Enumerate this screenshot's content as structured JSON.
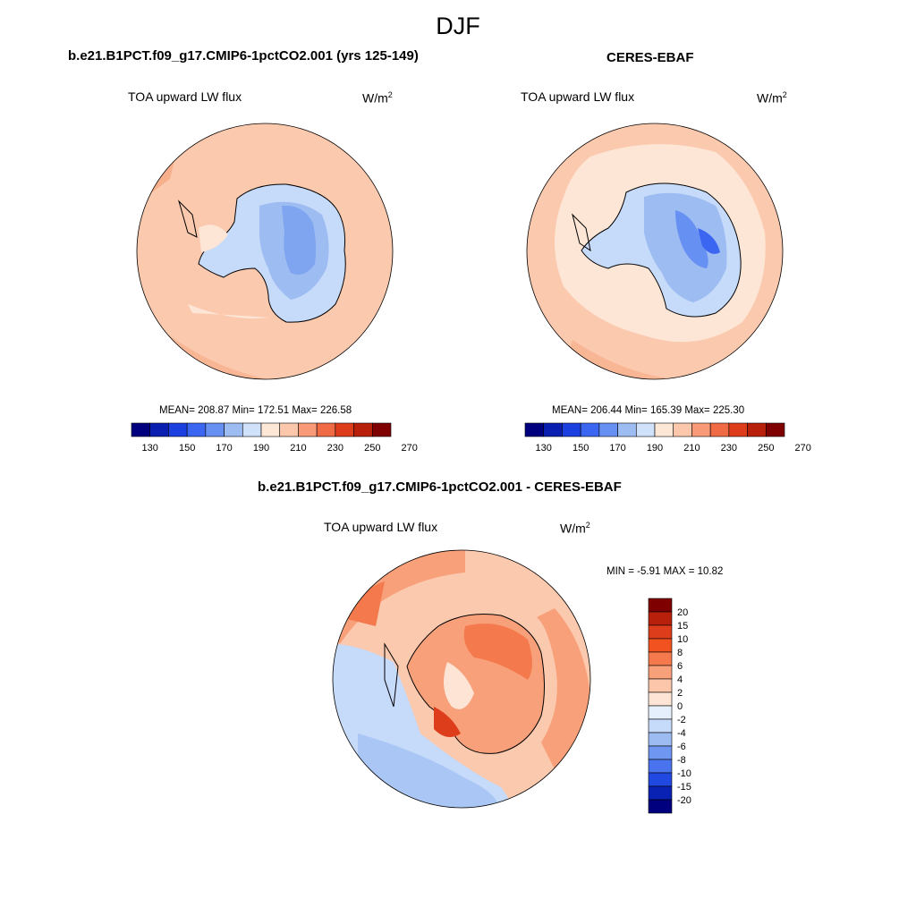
{
  "figure": {
    "title": "DJF"
  },
  "panels": [
    {
      "title": "b.e21.B1PCT.f09_g17.CMIP6-1pctCO2.001 (yrs 125-149)",
      "variable": "TOA upward LW flux",
      "units_base": "W/m",
      "units_sup": "2",
      "stats": "MEAN= 208.87  Min= 172.51  Max= 226.58"
    },
    {
      "title": "CERES-EBAF",
      "variable": "TOA upward LW flux",
      "units_base": "W/m",
      "units_sup": "2",
      "stats": "MEAN= 206.44  Min= 165.39  Max= 225.30"
    },
    {
      "title": "b.e21.B1PCT.f09_g17.CMIP6-1pctCO2.001 - CERES-EBAF",
      "variable": "TOA upward LW flux",
      "units_base": "W/m",
      "units_sup": "2",
      "stats": "MIN =  -5.91 MAX =  10.82"
    }
  ],
  "colorbars": {
    "absolute": {
      "tick_labels": [
        "130",
        "150",
        "170",
        "190",
        "210",
        "230",
        "250",
        "270"
      ],
      "colors": [
        "#00007f",
        "#0a1fb0",
        "#1c3fe0",
        "#3a66f2",
        "#6690f2",
        "#9dbcf2",
        "#cfe2fa",
        "#fde7d6",
        "#fcc7aa",
        "#f89a78",
        "#f06a45",
        "#de3d1c",
        "#b8200c",
        "#7f0000"
      ]
    },
    "difference": {
      "tick_labels": [
        "20",
        "15",
        "10",
        "8",
        "6",
        "4",
        "2",
        "0",
        "-2",
        "-4",
        "-6",
        "-8",
        "-10",
        "-15",
        "-20"
      ],
      "colors": [
        "#7f0000",
        "#b8200c",
        "#de3d1c",
        "#f2521f",
        "#f47a4e",
        "#f8a07a",
        "#fbc6aa",
        "#fde4d4",
        "#e6f0fc",
        "#c6dafa",
        "#9dbcf2",
        "#6f96f0",
        "#4a74ee",
        "#2148e0",
        "#0a22b4",
        "#00007f"
      ]
    }
  }
}
